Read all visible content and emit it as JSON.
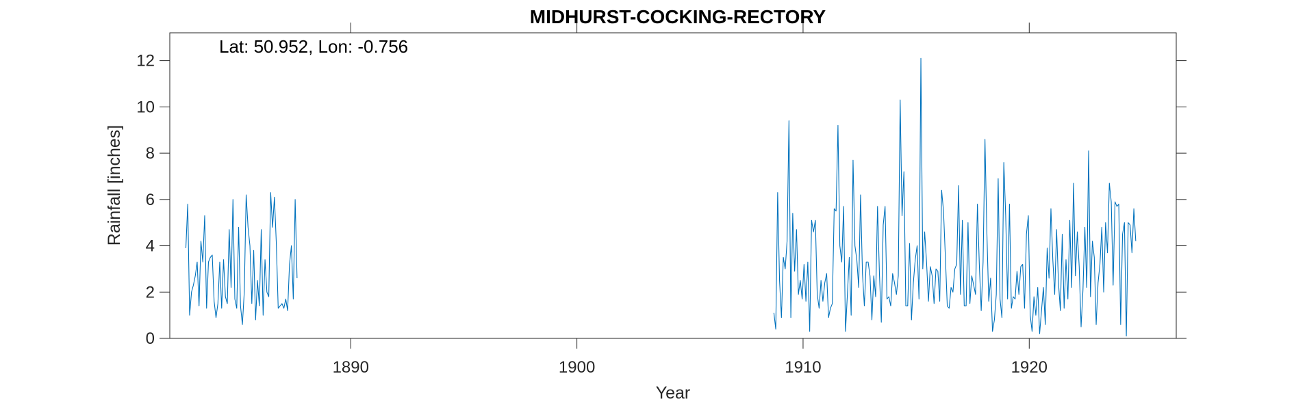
{
  "chart_data": {
    "type": "line",
    "title": "MIDHURST-COCKING-RECTORY",
    "xlabel": "Year",
    "ylabel": "Rainfall [inches]",
    "annotation": "Lat: 50.952, Lon: -0.756",
    "xlim": [
      1882.0,
      1926.5
    ],
    "ylim": [
      0,
      13.2
    ],
    "xticks": [
      1890,
      1900,
      1910,
      1920
    ],
    "yticks": [
      0,
      2,
      4,
      6,
      8,
      10,
      12
    ],
    "grid": false,
    "line_color": "#0072BD",
    "segments": [
      {
        "x_start": 1882.71,
        "x_step": 0.08333,
        "values": [
          3.9,
          5.8,
          1.0,
          2.0,
          2.3,
          2.7,
          3.3,
          1.4,
          4.2,
          3.3,
          5.3,
          1.3,
          3.3,
          3.5,
          3.6,
          1.6,
          0.9,
          1.5,
          3.3,
          1.3,
          3.4,
          1.8,
          1.5,
          4.7,
          2.2,
          6.0,
          1.7,
          1.3,
          4.8,
          1.4,
          0.6,
          2.0,
          6.2,
          4.8,
          4.0,
          1.5,
          3.8,
          0.8,
          2.5,
          1.4,
          4.7,
          1.0,
          3.4,
          2.0,
          1.8,
          6.3,
          4.8,
          6.1,
          4.1,
          1.3,
          1.4,
          1.5,
          1.3,
          1.7,
          1.2,
          3.2,
          4.0,
          1.7,
          6.0,
          2.6
        ]
      },
      {
        "x_start": 1908.71,
        "x_step": 0.08333,
        "values": [
          1.1,
          0.4,
          6.3,
          2.5,
          0.9,
          3.5,
          3.0,
          4.2,
          9.4,
          0.9,
          5.4,
          2.9,
          4.7,
          1.9,
          2.5,
          1.7,
          3.2,
          1.6,
          3.3,
          0.3,
          5.1,
          4.6,
          5.1,
          1.9,
          1.3,
          2.5,
          1.6,
          2.4,
          2.8,
          0.9,
          1.3,
          1.5,
          5.6,
          5.5,
          9.2,
          4.0,
          3.3,
          5.7,
          0.3,
          1.9,
          3.5,
          1.0,
          7.7,
          4.0,
          3.4,
          2.2,
          6.2,
          2.8,
          1.4,
          3.3,
          3.3,
          2.7,
          0.8,
          2.7,
          1.8,
          5.7,
          2.8,
          0.7,
          4.9,
          5.7,
          1.7,
          1.8,
          1.4,
          2.8,
          2.4,
          1.9,
          2.7,
          10.3,
          5.3,
          7.2,
          1.4,
          1.4,
          4.1,
          0.8,
          2.4,
          3.4,
          4.0,
          1.7,
          12.1,
          3.0,
          4.6,
          3.3,
          1.6,
          3.1,
          2.7,
          1.5,
          3.0,
          2.9,
          1.6,
          6.4,
          5.5,
          3.5,
          1.4,
          1.3,
          2.2,
          2.0,
          3.0,
          3.2,
          6.6,
          1.9,
          5.1,
          1.4,
          1.4,
          5.0,
          1.5,
          2.7,
          2.3,
          1.9,
          5.8,
          3.2,
          1.2,
          3.3,
          8.6,
          4.6,
          1.6,
          2.6,
          0.3,
          0.8,
          1.9,
          6.9,
          1.7,
          0.9,
          7.6,
          5.3,
          1.7,
          5.8,
          1.3,
          1.8,
          1.7,
          2.9,
          1.9,
          3.1,
          3.2,
          1.3,
          4.5,
          5.3,
          1.0,
          0.3,
          1.8,
          1.0,
          2.2,
          0.2,
          1.2,
          2.2,
          0.6,
          3.9,
          2.6,
          5.6,
          3.4,
          1.9,
          4.7,
          2.4,
          1.2,
          4.5,
          1.3,
          3.4,
          1.7,
          5.1,
          2.2,
          6.7,
          2.7,
          4.6,
          3.1,
          0.5,
          2.1,
          4.8,
          2.2,
          8.1,
          1.8,
          4.2,
          3.5,
          0.6,
          2.4,
          3.2,
          4.8,
          2.0,
          5.0,
          3.7,
          6.7,
          5.9,
          2.3,
          5.9,
          5.7,
          5.8,
          0.6,
          4.5,
          5.0,
          0.1,
          5.0,
          4.9,
          3.7,
          5.6,
          4.2
        ]
      }
    ]
  }
}
